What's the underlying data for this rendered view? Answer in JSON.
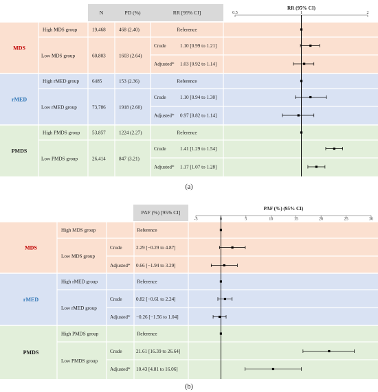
{
  "colors": {
    "mds_bg": "#fbe0d0",
    "rmed_bg": "#d9e2f3",
    "pmds_bg": "#e2efda",
    "header_bg": "#d9d9d9",
    "mds_text": "#c00000",
    "rmed_text": "#2e75b6",
    "pmds_text": "#222222",
    "separator": "#ffffff",
    "marker": "#000000"
  },
  "panel_a": {
    "label": "(a)",
    "headers": {
      "n": "N",
      "pd": "PD (%)",
      "rr": "RR [95% CI]"
    },
    "groups": [
      {
        "key": "mds",
        "name": "MDS",
        "high": {
          "name": "High MDS group",
          "n": "19,468",
          "pd": "468 (2.40)",
          "ref": "Reference"
        },
        "low": {
          "name": "Low MDS group",
          "n": "60,803",
          "pd": "1603 (2.64)",
          "crude": {
            "label": "Crude",
            "ci": "1.10 [0.99 to 1.21]"
          },
          "adjusted": {
            "label": "Adjusted*",
            "ci": "1.03 [0.92 to 1.14]"
          }
        }
      },
      {
        "key": "rmed",
        "name": "rMED",
        "high": {
          "name": "High rMED group",
          "n": "6485",
          "pd": "153 (2.36)",
          "ref": "Reference"
        },
        "low": {
          "name": "Low rMED group",
          "n": "73,786",
          "pd": "1918 (2.60)",
          "crude": {
            "label": "Crude",
            "ci": "1.10 [0.94 to 1.30]"
          },
          "adjusted": {
            "label": "Adjusted*",
            "ci": "0.97 [0.82 to 1.14]"
          }
        }
      },
      {
        "key": "pmds",
        "name": "PMDS",
        "high": {
          "name": "High PMDS group",
          "n": "53,857",
          "pd": "1224 (2.27)",
          "ref": "Reference"
        },
        "low": {
          "name": "Low PMDS group",
          "n": "26,414",
          "pd": "847 (3.21)",
          "crude": {
            "label": "Crude",
            "ci": "1.41 [1.29 to 1.54]"
          },
          "adjusted": {
            "label": "Adjusted*",
            "ci": "1.17 [1.07 to 1.28]"
          }
        }
      }
    ]
  },
  "panel_b": {
    "label": "(b)",
    "headers": {
      "paf": "PAF (%) [95% CI]"
    },
    "groups": [
      {
        "key": "mds",
        "name": "MDS",
        "high": {
          "name": "High MDS group",
          "ref": "Reference"
        },
        "low": {
          "name": "Low MDS group",
          "crude": {
            "label": "Crude",
            "ci": "2.29 [−0.29 to 4.87]"
          },
          "adjusted": {
            "label": "Adjusted*",
            "ci": "0.66 [−1.94 to 3.29]"
          }
        }
      },
      {
        "key": "rmed",
        "name": "rMED",
        "high": {
          "name": "High rMED group",
          "ref": "Reference"
        },
        "low": {
          "name": "Low rMED group",
          "crude": {
            "label": "Crude",
            "ci": "0.82 [−0.61 to 2.24]"
          },
          "adjusted": {
            "label": "Adjusted*",
            "ci": "−0.26 [−1.56 to 1.04]"
          }
        }
      },
      {
        "key": "pmds",
        "name": "PMDS",
        "high": {
          "name": "High PMDS group",
          "ref": "Reference"
        },
        "low": {
          "name": "Low PMDS group",
          "crude": {
            "label": "Crude",
            "ci": "21.61 [16.39 to 26.64]"
          },
          "adjusted": {
            "label": "Adjusted*",
            "ci": "10.43 [4.81 to 16.06]"
          }
        }
      }
    ]
  },
  "chart_data": [
    {
      "type": "scatter",
      "title": "RR (95% CI)",
      "xlabel": "",
      "ylabel": "",
      "xlim": [
        0.5,
        2
      ],
      "x_ticks": [
        "0.5",
        "1",
        "2"
      ],
      "reference_line": 1,
      "rows": [
        {
          "group": "MDS",
          "row": "High MDS group",
          "estimate": 1.0,
          "lower": 1.0,
          "upper": 1.0
        },
        {
          "group": "MDS",
          "row": "Crude",
          "estimate": 1.1,
          "lower": 0.99,
          "upper": 1.21
        },
        {
          "group": "MDS",
          "row": "Adjusted*",
          "estimate": 1.03,
          "lower": 0.92,
          "upper": 1.14
        },
        {
          "group": "rMED",
          "row": "High rMED group",
          "estimate": 1.0,
          "lower": 1.0,
          "upper": 1.0
        },
        {
          "group": "rMED",
          "row": "Crude",
          "estimate": 1.1,
          "lower": 0.94,
          "upper": 1.3
        },
        {
          "group": "rMED",
          "row": "Adjusted*",
          "estimate": 0.97,
          "lower": 0.82,
          "upper": 1.14
        },
        {
          "group": "PMDS",
          "row": "High PMDS group",
          "estimate": 1.0,
          "lower": 1.0,
          "upper": 1.0
        },
        {
          "group": "PMDS",
          "row": "Crude",
          "estimate": 1.41,
          "lower": 1.29,
          "upper": 1.54
        },
        {
          "group": "PMDS",
          "row": "Adjusted*",
          "estimate": 1.17,
          "lower": 1.07,
          "upper": 1.28
        }
      ]
    },
    {
      "type": "scatter",
      "title": "PAF (%)  (95% CI)",
      "xlabel": "",
      "ylabel": "",
      "xlim": [
        -5,
        30
      ],
      "x_ticks": [
        "-5",
        "0",
        "5",
        "10",
        "15",
        "20",
        "25",
        "30"
      ],
      "reference_line": 0,
      "rows": [
        {
          "group": "MDS",
          "row": "High MDS group",
          "estimate": 0,
          "lower": 0,
          "upper": 0
        },
        {
          "group": "MDS",
          "row": "Crude",
          "estimate": 2.29,
          "lower": -0.29,
          "upper": 4.87
        },
        {
          "group": "MDS",
          "row": "Adjusted*",
          "estimate": 0.66,
          "lower": -1.94,
          "upper": 3.29
        },
        {
          "group": "rMED",
          "row": "High rMED group",
          "estimate": 0,
          "lower": 0,
          "upper": 0
        },
        {
          "group": "rMED",
          "row": "Crude",
          "estimate": 0.82,
          "lower": -0.61,
          "upper": 2.24
        },
        {
          "group": "rMED",
          "row": "Adjusted*",
          "estimate": -0.26,
          "lower": -1.56,
          "upper": 1.04
        },
        {
          "group": "PMDS",
          "row": "High PMDS group",
          "estimate": 0,
          "lower": 0,
          "upper": 0
        },
        {
          "group": "PMDS",
          "row": "Crude",
          "estimate": 21.61,
          "lower": 16.39,
          "upper": 26.64
        },
        {
          "group": "PMDS",
          "row": "Adjusted*",
          "estimate": 10.43,
          "lower": 4.81,
          "upper": 16.06
        }
      ]
    }
  ]
}
